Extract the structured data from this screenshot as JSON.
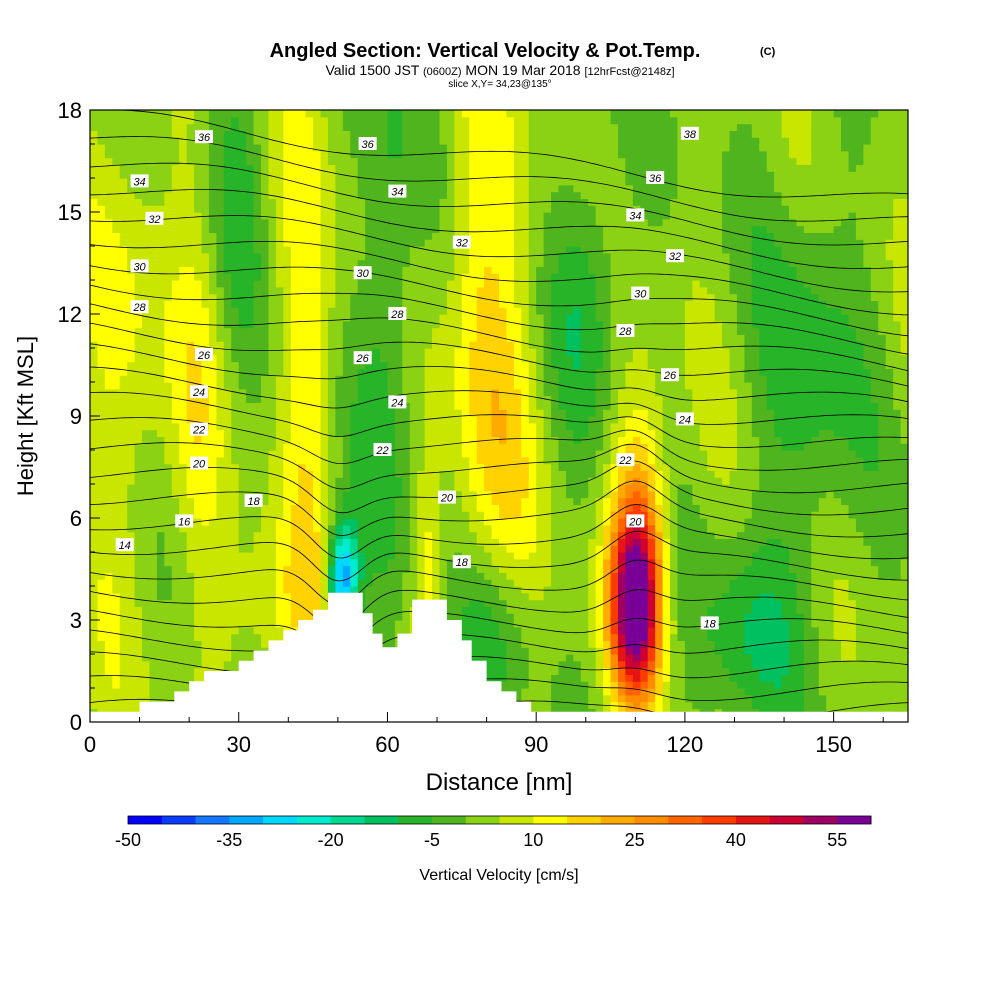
{
  "header": {
    "title": "Angled Section: Vertical Velocity & Pot.Temp.",
    "title_unit": "(C)",
    "valid_prefix": "Valid 1500 JST",
    "valid_utc": "(0600Z)",
    "valid_date": "MON 19 Mar 2018",
    "forecast": "[12hrFcst@2148z]",
    "slice": "slice X,Y= 34,23@135°"
  },
  "chart_data": {
    "type": "heatmap",
    "xlabel": "Distance [nm]",
    "ylabel": "Height [Kft MSL]",
    "xlim": [
      0,
      165
    ],
    "ylim": [
      0,
      18
    ],
    "x_ticks": [
      0,
      30,
      60,
      90,
      120,
      150
    ],
    "y_ticks": [
      0,
      3,
      6,
      9,
      12,
      15,
      18
    ],
    "colorbar": {
      "label": "Vertical Velocity [cm/s]",
      "min": -50,
      "max": 60,
      "step": 5,
      "tick_values": [
        -50,
        -35,
        -20,
        -5,
        10,
        25,
        40,
        55
      ],
      "tick_labels": [
        "-50",
        "-35",
        "-20",
        "-5",
        "10",
        "25",
        "40",
        "55"
      ],
      "colors": [
        "#0000ff",
        "#0a3cff",
        "#1478ff",
        "#00a8ff",
        "#00d8ff",
        "#00ecd0",
        "#00d890",
        "#00c060",
        "#28b428",
        "#50b41e",
        "#8cd214",
        "#c8e600",
        "#ffff00",
        "#ffd200",
        "#ffaa00",
        "#ff8c00",
        "#ff6400",
        "#ff3c00",
        "#e61414",
        "#cc0032",
        "#a00064",
        "#780096"
      ]
    },
    "terrain_profile": [
      [
        0,
        0.3
      ],
      [
        10,
        0.3
      ],
      [
        10,
        0.6
      ],
      [
        17,
        0.6
      ],
      [
        17,
        0.9
      ],
      [
        20,
        0.9
      ],
      [
        20,
        1.2
      ],
      [
        23,
        1.2
      ],
      [
        23,
        1.5
      ],
      [
        30,
        1.5
      ],
      [
        30,
        1.8
      ],
      [
        33,
        1.8
      ],
      [
        33,
        2.1
      ],
      [
        36,
        2.1
      ],
      [
        36,
        2.4
      ],
      [
        39,
        2.4
      ],
      [
        39,
        2.7
      ],
      [
        42,
        2.7
      ],
      [
        42,
        3.0
      ],
      [
        45,
        3.0
      ],
      [
        45,
        3.3
      ],
      [
        48,
        3.3
      ],
      [
        48,
        3.8
      ],
      [
        55,
        3.8
      ],
      [
        55,
        3.2
      ],
      [
        57,
        3.2
      ],
      [
        57,
        2.6
      ],
      [
        59,
        2.6
      ],
      [
        59,
        2.2
      ],
      [
        62,
        2.2
      ],
      [
        62,
        2.6
      ],
      [
        65,
        2.6
      ],
      [
        65,
        3.6
      ],
      [
        72,
        3.6
      ],
      [
        72,
        3.0
      ],
      [
        75,
        3.0
      ],
      [
        75,
        2.4
      ],
      [
        77,
        2.4
      ],
      [
        77,
        1.8
      ],
      [
        80,
        1.8
      ],
      [
        80,
        1.2
      ],
      [
        83,
        1.2
      ],
      [
        83,
        0.9
      ],
      [
        86,
        0.9
      ],
      [
        86,
        0.6
      ],
      [
        89,
        0.6
      ],
      [
        89,
        0.3
      ],
      [
        165,
        0.3
      ]
    ],
    "theta_contour_levels": [
      14,
      16,
      18,
      20,
      22,
      24,
      26,
      28,
      30,
      32,
      34,
      36,
      38
    ],
    "theta_contour_labels": [
      {
        "x": 7,
        "y": 5.2,
        "text": "14"
      },
      {
        "x": 19,
        "y": 5.9,
        "text": "16"
      },
      {
        "x": 33,
        "y": 6.5,
        "text": "18"
      },
      {
        "x": 22,
        "y": 7.6,
        "text": "20"
      },
      {
        "x": 22,
        "y": 8.6,
        "text": "22"
      },
      {
        "x": 22,
        "y": 9.7,
        "text": "24"
      },
      {
        "x": 23,
        "y": 10.8,
        "text": "26"
      },
      {
        "x": 10,
        "y": 12.2,
        "text": "28"
      },
      {
        "x": 10,
        "y": 13.4,
        "text": "30"
      },
      {
        "x": 13,
        "y": 14.8,
        "text": "32"
      },
      {
        "x": 10,
        "y": 15.9,
        "text": "34"
      },
      {
        "x": 23,
        "y": 17.2,
        "text": "36"
      },
      {
        "x": 56,
        "y": 17.0,
        "text": "36"
      },
      {
        "x": 62,
        "y": 15.6,
        "text": "34"
      },
      {
        "x": 75,
        "y": 14.1,
        "text": "32"
      },
      {
        "x": 55,
        "y": 13.2,
        "text": "30"
      },
      {
        "x": 62,
        "y": 12.0,
        "text": "28"
      },
      {
        "x": 55,
        "y": 10.7,
        "text": "26"
      },
      {
        "x": 62,
        "y": 9.4,
        "text": "24"
      },
      {
        "x": 59,
        "y": 8.0,
        "text": "22"
      },
      {
        "x": 72,
        "y": 6.6,
        "text": "20"
      },
      {
        "x": 75,
        "y": 4.7,
        "text": "18"
      },
      {
        "x": 110,
        "y": 5.9,
        "text": "20"
      },
      {
        "x": 108,
        "y": 7.7,
        "text": "22"
      },
      {
        "x": 120,
        "y": 8.9,
        "text": "24"
      },
      {
        "x": 117,
        "y": 10.2,
        "text": "26"
      },
      {
        "x": 108,
        "y": 11.5,
        "text": "28"
      },
      {
        "x": 111,
        "y": 12.6,
        "text": "30"
      },
      {
        "x": 118,
        "y": 13.7,
        "text": "32"
      },
      {
        "x": 110,
        "y": 14.9,
        "text": "34"
      },
      {
        "x": 114,
        "y": 16.0,
        "text": "36"
      },
      {
        "x": 121,
        "y": 17.3,
        "text": "38"
      },
      {
        "x": 125,
        "y": 2.9,
        "text": "18"
      }
    ],
    "features": [
      {
        "name": "strong updraft core",
        "x": 110,
        "y": 3.5,
        "max_value": 60
      },
      {
        "name": "lee downdraft",
        "x": 51,
        "y": 4.0,
        "min_value": -25
      }
    ]
  }
}
